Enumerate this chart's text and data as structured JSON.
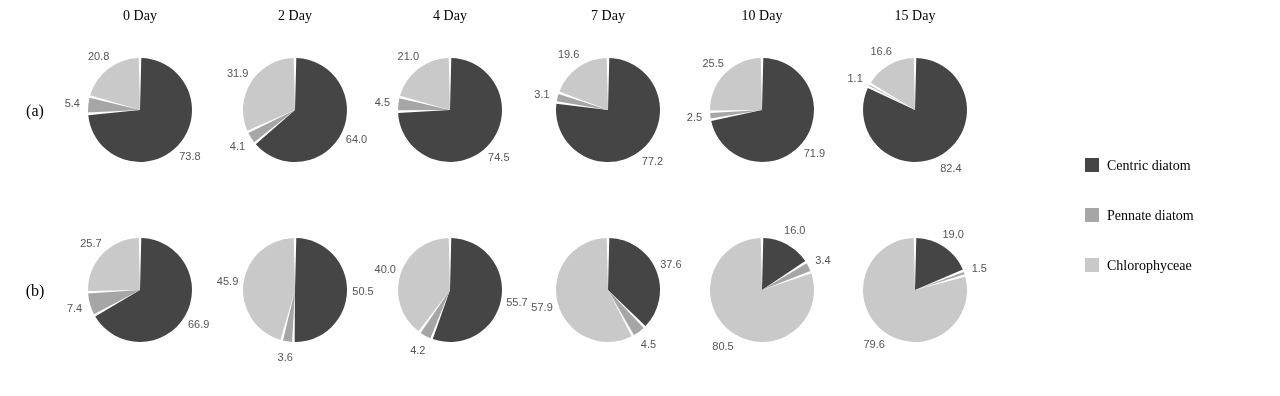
{
  "chart_data": [
    {
      "type": "pie",
      "title": "0 Day",
      "annotations": [
        "(a)"
      ],
      "legend": "right",
      "categories": [
        "Centric diatom",
        "Pennate diatom",
        "Chlorophyceae"
      ],
      "values": [
        73.8,
        5.4,
        20.8
      ],
      "value_labels": [
        "73.8",
        "5.4",
        "20.8"
      ],
      "colors": [
        "#454545",
        "#a6a6a6",
        "#c9c9c9"
      ]
    },
    {
      "type": "pie",
      "title": "2 Day",
      "categories": [
        null,
        null,
        null
      ],
      "values": [
        64.0,
        4.1,
        31.9
      ],
      "value_labels": [
        "64.0",
        "4.1",
        "31.9"
      ],
      "colors": [
        "#454545",
        "#a6a6a6",
        "#c9c9c9"
      ]
    },
    {
      "type": "pie",
      "title": "4 Day",
      "categories": [
        null,
        null,
        null
      ],
      "values": [
        74.5,
        4.5,
        21.0
      ],
      "value_labels": [
        "74.5",
        "4.5",
        "21.0"
      ],
      "colors": [
        "#454545",
        "#a6a6a6",
        "#c9c9c9"
      ]
    },
    {
      "type": "pie",
      "title": "7 Day",
      "categories": [
        null,
        null,
        null
      ],
      "values": [
        77.2,
        3.1,
        19.6
      ],
      "value_labels": [
        "77.2",
        "3.1",
        "19.6"
      ],
      "colors": [
        "#454545",
        "#a6a6a6",
        "#c9c9c9"
      ]
    },
    {
      "type": "pie",
      "title": "10 Day",
      "categories": [
        null,
        null,
        null
      ],
      "values": [
        71.9,
        2.5,
        25.5
      ],
      "value_labels": [
        "71.9",
        "2.5",
        "25.5"
      ],
      "colors": [
        "#454545",
        "#a6a6a6",
        "#c9c9c9"
      ]
    },
    {
      "type": "pie",
      "title": "15 Day",
      "categories": [
        null,
        null,
        null
      ],
      "values": [
        82.4,
        1.1,
        16.6
      ],
      "value_labels": [
        "82.4",
        "1.1",
        "16.6"
      ],
      "colors": [
        "#454545",
        "#a6a6a6",
        "#c9c9c9"
      ]
    },
    {
      "type": "pie",
      "annotations": [
        "(b)"
      ],
      "categories": [
        null,
        null,
        null
      ],
      "values": [
        66.9,
        7.4,
        25.7
      ],
      "value_labels": [
        "66.9",
        "7.4",
        "25.7"
      ],
      "colors": [
        "#454545",
        "#a6a6a6",
        "#c9c9c9"
      ]
    },
    {
      "type": "pie",
      "categories": [
        null,
        null,
        null
      ],
      "values": [
        50.5,
        3.6,
        45.9
      ],
      "value_labels": [
        "50.5",
        "3.6",
        "45.9"
      ],
      "colors": [
        "#454545",
        "#a6a6a6",
        "#c9c9c9"
      ]
    },
    {
      "type": "pie",
      "categories": [
        null,
        null,
        null
      ],
      "values": [
        55.7,
        4.2,
        40.0
      ],
      "value_labels": [
        "55.7",
        "4.2",
        "40.0"
      ],
      "colors": [
        "#454545",
        "#a6a6a6",
        "#c9c9c9"
      ]
    },
    {
      "type": "pie",
      "categories": [
        null,
        null,
        null
      ],
      "values": [
        37.6,
        4.5,
        57.9
      ],
      "value_labels": [
        "37.6",
        "4.5",
        "57.9"
      ],
      "colors": [
        "#454545",
        "#a6a6a6",
        "#c9c9c9"
      ]
    },
    {
      "type": "pie",
      "categories": [
        null,
        null,
        null
      ],
      "values": [
        16.0,
        3.4,
        80.5
      ],
      "value_labels": [
        "16.0",
        "3.4",
        "80.5"
      ],
      "colors": [
        "#454545",
        "#a6a6a6",
        "#c9c9c9"
      ]
    },
    {
      "type": "pie",
      "categories": [
        null,
        null,
        null
      ],
      "values": [
        19.0,
        1.5,
        79.6
      ],
      "value_labels": [
        "19.0",
        "1.5",
        "79.6"
      ],
      "colors": [
        "#454545",
        "#a6a6a6",
        "#c9c9c9"
      ]
    }
  ]
}
